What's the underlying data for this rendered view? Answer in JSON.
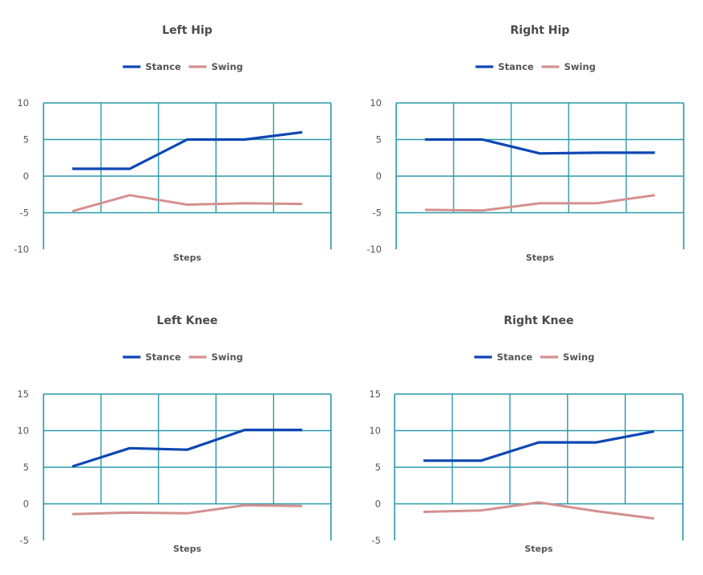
{
  "colors": {
    "stance": "#0d47b3",
    "swing": "#d4908f",
    "grid": "#2a9aaa",
    "text": "#4a4a4a"
  },
  "chart_data": [
    {
      "type": "line",
      "title": "Left Hip",
      "xlabel": "Steps",
      "ylabel": "",
      "ylim": [
        -10,
        10
      ],
      "yticks": [
        "10",
        "5",
        "0",
        "-5",
        "-10"
      ],
      "ytick_values": [
        10,
        5,
        0,
        -5,
        -10
      ],
      "x": [
        1,
        2,
        3,
        4,
        5
      ],
      "grid": true,
      "legend": "top-center",
      "series": [
        {
          "name": "Stance",
          "values": [
            1,
            1,
            5,
            5,
            6
          ]
        },
        {
          "name": "Swing",
          "values": [
            -4.8,
            -2.6,
            -3.9,
            -3.7,
            -3.8
          ]
        }
      ]
    },
    {
      "type": "line",
      "title": "Right Hip",
      "xlabel": "Steps",
      "ylabel": "",
      "ylim": [
        -10,
        10
      ],
      "yticks": [
        "10",
        "5",
        "0",
        "-5",
        "-10"
      ],
      "ytick_values": [
        10,
        5,
        0,
        -5,
        -10
      ],
      "x": [
        1,
        2,
        3,
        4,
        5
      ],
      "grid": true,
      "legend": "top-center",
      "series": [
        {
          "name": "Stance",
          "values": [
            5,
            5,
            3.1,
            3.2,
            3.2
          ]
        },
        {
          "name": "Swing",
          "values": [
            -4.6,
            -4.7,
            -3.7,
            -3.7,
            -2.6
          ]
        }
      ]
    },
    {
      "type": "line",
      "title": "Left Knee",
      "xlabel": "Steps",
      "ylabel": "",
      "ylim": [
        -5,
        15
      ],
      "yticks": [
        "15",
        "10",
        "5",
        "0",
        "-5"
      ],
      "ytick_values": [
        15,
        10,
        5,
        0,
        -5
      ],
      "x": [
        1,
        2,
        3,
        4,
        5
      ],
      "grid": true,
      "legend": "top-center",
      "series": [
        {
          "name": "Stance",
          "values": [
            5.1,
            7.6,
            7.4,
            10.1,
            10.1
          ]
        },
        {
          "name": "Swing",
          "values": [
            -1.4,
            -1.2,
            -1.3,
            -0.2,
            -0.3
          ]
        }
      ]
    },
    {
      "type": "line",
      "title": "Right Knee",
      "xlabel": "Steps",
      "ylabel": "",
      "ylim": [
        -5,
        15
      ],
      "yticks": [
        "15",
        "10",
        "5",
        "0",
        "-5"
      ],
      "ytick_values": [
        15,
        10,
        5,
        0,
        -5
      ],
      "x": [
        1,
        2,
        3,
        4,
        5
      ],
      "grid": true,
      "legend": "top-center",
      "series": [
        {
          "name": "Stance",
          "values": [
            5.9,
            5.9,
            8.4,
            8.4,
            9.9
          ]
        },
        {
          "name": "Swing",
          "values": [
            -1.1,
            -0.9,
            0.2,
            -1.0,
            -2.0
          ]
        }
      ]
    }
  ]
}
